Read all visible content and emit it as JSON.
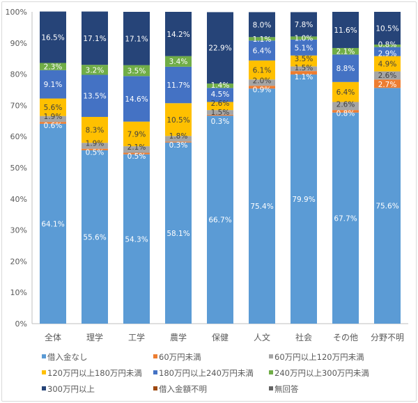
{
  "chart_data": {
    "type": "bar",
    "stacked": true,
    "percent": true,
    "categories": [
      "全体",
      "理学",
      "工学",
      "農学",
      "保健",
      "人文",
      "社会",
      "その他",
      "分野不明"
    ],
    "ylim": [
      0,
      100
    ],
    "yticks": [
      "0%",
      "10%",
      "20%",
      "30%",
      "40%",
      "50%",
      "60%",
      "70%",
      "80%",
      "90%",
      "100%"
    ],
    "grid": false,
    "legend_position": "bottom",
    "series": [
      {
        "name": "借入金なし",
        "color": "#5B9BD5",
        "label_color": "#ffffff",
        "values": [
          64.1,
          55.6,
          54.3,
          58.1,
          66.7,
          75.4,
          79.9,
          67.7,
          75.6
        ]
      },
      {
        "name": "60万円未満",
        "color": "#ED7D31",
        "label_color": "#ffffff",
        "values": [
          0.6,
          0.5,
          0.5,
          0.3,
          0.3,
          0.9,
          1.1,
          0.8,
          2.7
        ]
      },
      {
        "name": "60万円以上120万円未満",
        "color": "#A5A5A5",
        "label_color": "#404040",
        "values": [
          1.9,
          1.9,
          2.1,
          1.8,
          1.5,
          2.0,
          1.5,
          2.6,
          2.6
        ]
      },
      {
        "name": "120万円以上180万円未満",
        "color": "#FFC000",
        "label_color": "#404040",
        "values": [
          5.6,
          8.3,
          7.9,
          10.5,
          2.6,
          6.1,
          3.5,
          6.4,
          4.9
        ]
      },
      {
        "name": "180万円以上240万円未満",
        "color": "#4472C4",
        "label_color": "#ffffff",
        "values": [
          9.1,
          13.5,
          14.6,
          11.7,
          4.5,
          6.4,
          5.1,
          8.8,
          2.9
        ]
      },
      {
        "name": "240万円以上300万円未満",
        "color": "#70AD47",
        "label_color": "#ffffff",
        "values": [
          2.3,
          3.2,
          3.5,
          3.4,
          1.4,
          1.1,
          1.0,
          2.1,
          0.8
        ]
      },
      {
        "name": "300万円以上",
        "color": "#264478",
        "label_color": "#ffffff",
        "values": [
          16.5,
          17.1,
          17.1,
          14.2,
          22.9,
          8.0,
          7.8,
          11.6,
          10.5
        ]
      },
      {
        "name": "借入金額不明",
        "color": "#9E480E",
        "label_color": "#ffffff",
        "values": [
          0,
          0,
          0,
          0,
          0,
          0,
          0,
          0,
          0
        ]
      },
      {
        "name": "無回答",
        "color": "#636363",
        "label_color": "#ffffff",
        "values": [
          0,
          0,
          0,
          0,
          0,
          0,
          0,
          0,
          0
        ]
      }
    ]
  }
}
